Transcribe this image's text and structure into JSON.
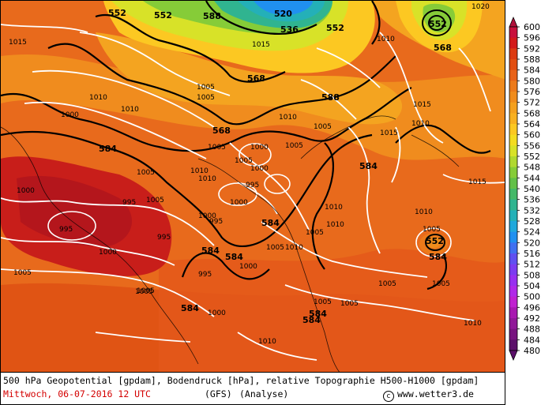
{
  "map": {
    "pressure_labels": [
      "1005",
      "1010",
      "1015",
      "1000",
      "995",
      "1005",
      "1010",
      "1005",
      "1015",
      "1000",
      "1005",
      "1010",
      "1005",
      "1000",
      "995",
      "1005",
      "1010",
      "1000",
      "995",
      "1000",
      "1005",
      "995",
      "1000",
      "1005",
      "1010",
      "1005",
      "1010",
      "1005",
      "1010",
      "1015",
      "1010",
      "1015",
      "1005",
      "1000",
      "1005",
      "1010",
      "1005",
      "1005",
      "1005",
      "1010",
      "1005",
      "1010",
      "995",
      "1000",
      "995",
      "1010",
      "1005",
      "1000",
      "1010",
      "1005",
      "1015",
      "1020"
    ],
    "geopotential_labels": [
      "552",
      "552",
      "520",
      "536",
      "552",
      "588",
      "552",
      "568",
      "568",
      "588",
      "568",
      "584",
      "584",
      "584",
      "584",
      "584",
      "584",
      "584",
      "552",
      "584",
      "584"
    ]
  },
  "legend": {
    "levels": [
      "600",
      "596",
      "592",
      "588",
      "584",
      "580",
      "576",
      "572",
      "568",
      "564",
      "560",
      "556",
      "552",
      "548",
      "544",
      "540",
      "536",
      "532",
      "528",
      "524",
      "520",
      "516",
      "512",
      "508",
      "504",
      "500",
      "496",
      "492",
      "488",
      "484",
      "480"
    ],
    "colors": [
      "#b0103a",
      "#c8103c",
      "#d31a1a",
      "#dc3a10",
      "#e24e10",
      "#e86218",
      "#ec7a1a",
      "#f08c1c",
      "#f4a01e",
      "#f8b020",
      "#fcc822",
      "#f4dc20",
      "#d8e228",
      "#b0d830",
      "#86cc38",
      "#62c048",
      "#44b868",
      "#30b490",
      "#24b0b8",
      "#20a8dc",
      "#2090f0",
      "#4070f0",
      "#6050f0",
      "#7c3cf0",
      "#9830f0",
      "#b028e8",
      "#c020d0",
      "#a818b0",
      "#901898",
      "#781480",
      "#5c106a"
    ]
  },
  "footer": {
    "description": "500 hPa Geopotential [gpdam], Bodendruck [hPa], relative Topographie H500-H1000 [gpdam]",
    "date": "Mittwoch, 06-07-2016  12 UTC",
    "model": "(GFS)",
    "analysis": "(Analyse)",
    "credit_symbol": "c",
    "credit": "www.wetter3.de"
  }
}
